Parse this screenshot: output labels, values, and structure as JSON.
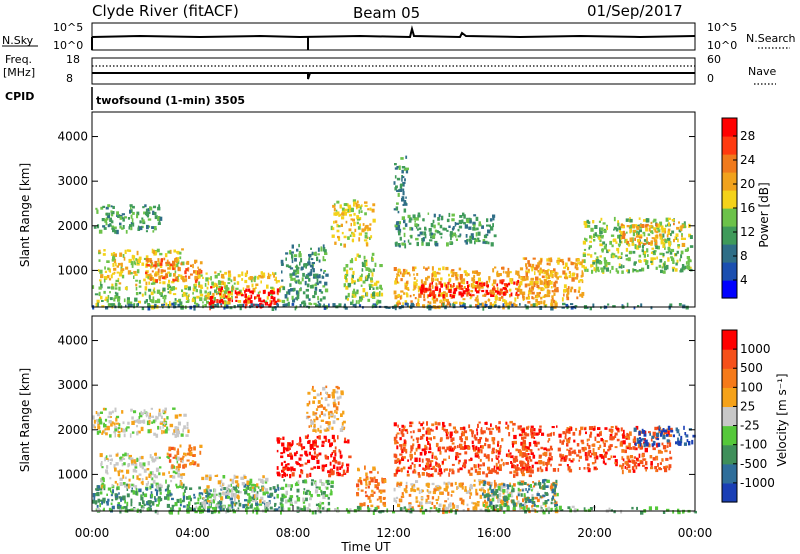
{
  "header": {
    "station": "Clyde River (fitACF)",
    "beam": "Beam 05",
    "date": "01/Sep/2017"
  },
  "strips": {
    "nsky_label": "N.Sky",
    "nsearch_label": "N.Search",
    "noise_ticks": [
      "10^5",
      "10^0"
    ],
    "freq_label_1": "Freq.",
    "freq_label_2": "[MHz]",
    "freq_ticks": [
      "18",
      "8"
    ],
    "nave_label": "Nave",
    "nave_ticks": [
      "60",
      "0"
    ],
    "cpid_label": "CPID",
    "cpid_text": "twofsound (1-min) 3505"
  },
  "chart_data": [
    {
      "type": "heatmap",
      "panel": "power",
      "ylabel": "Slant Range [km]",
      "yticks": [
        1000,
        2000,
        3000,
        4000
      ],
      "ylim": [
        180,
        4550
      ],
      "xlim": [
        0,
        24
      ],
      "xlabel": "",
      "colorbar_label": "Power [dB]",
      "colorbar_ticks": [
        "28",
        "24",
        "20",
        "16",
        "12",
        "8",
        "4"
      ],
      "colorbar_colors": [
        "#0000ff",
        "#1b4fb0",
        "#2f6e87",
        "#3f9a5a",
        "#6cc24a",
        "#f4d21a",
        "#f1a21c",
        "#f07a1c",
        "#ff3a10",
        "#ff0000"
      ],
      "regions": [
        {
          "t0": 0.0,
          "t1": 2.7,
          "r0": 1900,
          "r1": 2500,
          "band": 3
        },
        {
          "t0": 0.2,
          "t1": 3.6,
          "r0": 700,
          "r1": 1500,
          "band": 5
        },
        {
          "t0": 0.0,
          "t1": 5.5,
          "r0": 200,
          "r1": 700,
          "band": 4
        },
        {
          "t0": 2.0,
          "t1": 4.3,
          "r0": 800,
          "r1": 1300,
          "band": 7
        },
        {
          "t0": 4.0,
          "t1": 7.5,
          "r0": 300,
          "r1": 1000,
          "band": 5
        },
        {
          "t0": 4.6,
          "t1": 7.4,
          "r0": 200,
          "r1": 650,
          "band": 9
        },
        {
          "t0": 7.5,
          "t1": 9.3,
          "r0": 200,
          "r1": 1600,
          "band": 3
        },
        {
          "t0": 9.5,
          "t1": 11.2,
          "r0": 1600,
          "r1": 2600,
          "band": 5
        },
        {
          "t0": 10.0,
          "t1": 11.5,
          "r0": 300,
          "r1": 1400,
          "band": 4
        },
        {
          "t0": 12.0,
          "t1": 18.5,
          "r0": 200,
          "r1": 1100,
          "band": 6
        },
        {
          "t0": 13.0,
          "t1": 17.0,
          "r0": 450,
          "r1": 800,
          "band": 9
        },
        {
          "t0": 12.5,
          "t1": 16.0,
          "r0": 1600,
          "r1": 2300,
          "band": 3
        },
        {
          "t0": 17.0,
          "t1": 19.5,
          "r0": 400,
          "r1": 1300,
          "band": 6
        },
        {
          "t0": 19.5,
          "t1": 23.8,
          "r0": 1000,
          "r1": 2200,
          "band": 4
        },
        {
          "t0": 21.0,
          "t1": 23.5,
          "r0": 1600,
          "r1": 2100,
          "band": 6
        },
        {
          "t0": 12.0,
          "t1": 12.5,
          "r0": 1500,
          "r1": 3600,
          "band": 3
        },
        {
          "t0": 0.0,
          "t1": 24.0,
          "r0": 180,
          "r1": 280,
          "band": 2
        }
      ]
    },
    {
      "type": "heatmap",
      "panel": "velocity",
      "ylabel": "Slant Range [km]",
      "yticks": [
        1000,
        2000,
        3000,
        4000
      ],
      "ylim": [
        180,
        4550
      ],
      "xlim": [
        0,
        24
      ],
      "xlabel": "Time UT",
      "xticks": [
        "00:00",
        "04:00",
        "08:00",
        "12:00",
        "16:00",
        "20:00",
        "00:00"
      ],
      "colorbar_label": "Velocity [m s⁻¹]",
      "colorbar_ticks": [
        "1000",
        "500",
        "100",
        "25",
        "-25",
        "-100",
        "-500",
        "-1000"
      ],
      "colorbar_colors": [
        "#1a3fb5",
        "#2f6e9a",
        "#3f8f5a",
        "#55c83a",
        "#c8c8c8",
        "#f5a21a",
        "#f57a1a",
        "#f5501a",
        "#ff0000"
      ],
      "regions": [
        {
          "t0": 0.0,
          "t1": 3.8,
          "r0": 1900,
          "r1": 2500,
          "band": 4
        },
        {
          "t0": 0.3,
          "t1": 3.6,
          "r0": 700,
          "r1": 1500,
          "band": 4
        },
        {
          "t0": 0.0,
          "t1": 7.5,
          "r0": 200,
          "r1": 800,
          "band": 2
        },
        {
          "t0": 3.0,
          "t1": 4.3,
          "r0": 1200,
          "r1": 1700,
          "band": 6
        },
        {
          "t0": 4.3,
          "t1": 7.0,
          "r0": 300,
          "r1": 1000,
          "band": 4
        },
        {
          "t0": 7.5,
          "t1": 9.5,
          "r0": 200,
          "r1": 900,
          "band": 3
        },
        {
          "t0": 7.3,
          "t1": 10.2,
          "r0": 1000,
          "r1": 1900,
          "band": 8
        },
        {
          "t0": 8.5,
          "t1": 10.0,
          "r0": 2000,
          "r1": 3000,
          "band": 5
        },
        {
          "t0": 10.5,
          "t1": 11.6,
          "r0": 300,
          "r1": 1200,
          "band": 6
        },
        {
          "t0": 12.0,
          "t1": 18.5,
          "r0": 200,
          "r1": 900,
          "band": 5
        },
        {
          "t0": 12.0,
          "t1": 17.5,
          "r0": 1000,
          "r1": 2200,
          "band": 7
        },
        {
          "t0": 15.5,
          "t1": 18.5,
          "r0": 300,
          "r1": 900,
          "band": 2
        },
        {
          "t0": 17.0,
          "t1": 23.0,
          "r0": 1100,
          "r1": 2100,
          "band": 7
        },
        {
          "t0": 21.5,
          "t1": 23.9,
          "r0": 1700,
          "r1": 2100,
          "band": 0
        },
        {
          "t0": 0.0,
          "t1": 24.0,
          "r0": 180,
          "r1": 300,
          "band": 3
        }
      ]
    }
  ]
}
